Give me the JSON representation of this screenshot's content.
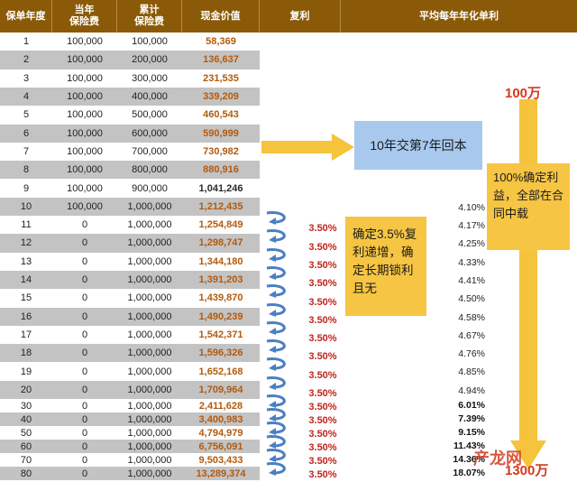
{
  "headers": {
    "year": "保单年度",
    "premium": "当年\n保险费",
    "cumulative": "累计\n保险费",
    "cash_value": "现金价值",
    "compound": "复利",
    "avg_simple": "平均每年年化单利"
  },
  "rows": [
    {
      "year": "1",
      "premium": "100,000",
      "cumulative": "100,000",
      "cash_value": "58,369",
      "rate": "",
      "avg": ""
    },
    {
      "year": "2",
      "premium": "100,000",
      "cumulative": "200,000",
      "cash_value": "136,637",
      "rate": "",
      "avg": ""
    },
    {
      "year": "3",
      "premium": "100,000",
      "cumulative": "300,000",
      "cash_value": "231,535",
      "rate": "",
      "avg": ""
    },
    {
      "year": "4",
      "premium": "100,000",
      "cumulative": "400,000",
      "cash_value": "339,209",
      "rate": "",
      "avg": ""
    },
    {
      "year": "5",
      "premium": "100,000",
      "cumulative": "500,000",
      "cash_value": "460,543",
      "rate": "",
      "avg": ""
    },
    {
      "year": "6",
      "premium": "100,000",
      "cumulative": "600,000",
      "cash_value": "590,999",
      "rate": "",
      "avg": ""
    },
    {
      "year": "7",
      "premium": "100,000",
      "cumulative": "700,000",
      "cash_value": "730,982",
      "rate": "",
      "avg": ""
    },
    {
      "year": "8",
      "premium": "100,000",
      "cumulative": "800,000",
      "cash_value": "880,916",
      "rate": "",
      "avg": ""
    },
    {
      "year": "9",
      "premium": "100,000",
      "cumulative": "900,000",
      "cash_value": "1,041,246",
      "rate": "",
      "avg": ""
    },
    {
      "year": "10",
      "premium": "100,000",
      "cumulative": "1,000,000",
      "cash_value": "1,212,435",
      "rate": "",
      "avg": "4.10%"
    },
    {
      "year": "11",
      "premium": "0",
      "cumulative": "1,000,000",
      "cash_value": "1,254,849",
      "rate": "3.50%",
      "avg": "4.17%"
    },
    {
      "year": "12",
      "premium": "0",
      "cumulative": "1,000,000",
      "cash_value": "1,298,747",
      "rate": "3.50%",
      "avg": "4.25%"
    },
    {
      "year": "13",
      "premium": "0",
      "cumulative": "1,000,000",
      "cash_value": "1,344,180",
      "rate": "3.50%",
      "avg": "4.33%"
    },
    {
      "year": "14",
      "premium": "0",
      "cumulative": "1,000,000",
      "cash_value": "1,391,203",
      "rate": "3.50%",
      "avg": "4.41%"
    },
    {
      "year": "15",
      "premium": "0",
      "cumulative": "1,000,000",
      "cash_value": "1,439,870",
      "rate": "3.50%",
      "avg": "4.50%"
    },
    {
      "year": "16",
      "premium": "0",
      "cumulative": "1,000,000",
      "cash_value": "1,490,239",
      "rate": "3.50%",
      "avg": "4.58%"
    },
    {
      "year": "17",
      "premium": "0",
      "cumulative": "1,000,000",
      "cash_value": "1,542,371",
      "rate": "3.50%",
      "avg": "4.67%"
    },
    {
      "year": "18",
      "premium": "0",
      "cumulative": "1,000,000",
      "cash_value": "1,596,326",
      "rate": "3.50%",
      "avg": "4.76%"
    },
    {
      "year": "19",
      "premium": "0",
      "cumulative": "1,000,000",
      "cash_value": "1,652,168",
      "rate": "3.50%",
      "avg": "4.85%"
    },
    {
      "year": "20",
      "premium": "0",
      "cumulative": "1,000,000",
      "cash_value": "1,709,964",
      "rate": "3.50%",
      "avg": "4.94%"
    },
    {
      "year": "30",
      "premium": "0",
      "cumulative": "1,000,000",
      "cash_value": "2,411,628",
      "rate": "3.50%",
      "avg": "6.01%"
    },
    {
      "year": "40",
      "premium": "0",
      "cumulative": "1,000,000",
      "cash_value": "3,400,983",
      "rate": "3.50%",
      "avg": "7.39%"
    },
    {
      "year": "50",
      "premium": "0",
      "cumulative": "1,000,000",
      "cash_value": "4,794,979",
      "rate": "3.50%",
      "avg": "9.15%"
    },
    {
      "year": "60",
      "premium": "0",
      "cumulative": "1,000,000",
      "cash_value": "6,756,091",
      "rate": "3.50%",
      "avg": "11.43%"
    },
    {
      "year": "70",
      "premium": "0",
      "cumulative": "1,000,000",
      "cash_value": "9,503,433",
      "rate": "3.50%",
      "avg": "14.36%"
    },
    {
      "year": "80",
      "premium": "0",
      "cumulative": "1,000,000",
      "cash_value": "13,289,374",
      "rate": "3.50%",
      "avg": "18.07%"
    }
  ],
  "callouts": {
    "payback": "10年交第7年回本",
    "compound_note": "确定3.5%复利递增，确定长期锁利且无",
    "guarantee_note": "100%确定利益，全部在合同中载",
    "top_amount": "100万",
    "bottom_amount": "1300万",
    "watermark": "产龙网"
  },
  "colors": {
    "header_bg": "#8a5a08",
    "row_gray": "#c3c3c3",
    "cash_value_text": "#b35a0c",
    "rate_text": "#c0241c",
    "callout_blue": "#a8c8ee",
    "callout_yellow": "#f6c544",
    "arrow_yellow": "#f5c33c",
    "swirl_blue": "#4a7fc4"
  }
}
